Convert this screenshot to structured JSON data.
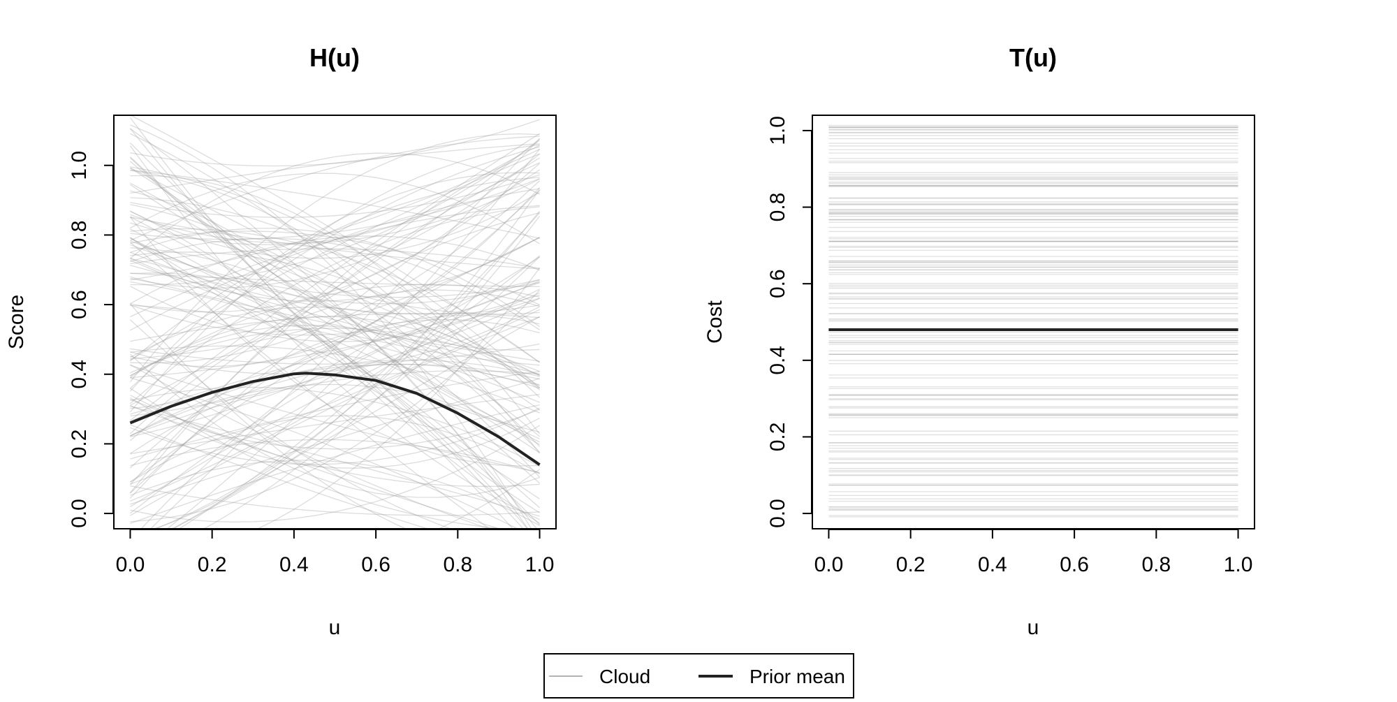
{
  "chart_data": [
    {
      "type": "line",
      "title": "H(u)",
      "xlabel": "u",
      "ylabel": "Score",
      "xlim": [
        -0.04,
        1.04
      ],
      "ylim": [
        -0.044,
        1.144
      ],
      "xticks": [
        "0.0",
        "0.2",
        "0.4",
        "0.6",
        "0.8",
        "1.0"
      ],
      "yticks": [
        "0.0",
        "0.2",
        "0.4",
        "0.6",
        "0.8",
        "1.0"
      ],
      "grid": false,
      "cloud": {
        "name": "Cloud",
        "count": 150,
        "kind": "quadratic curves",
        "color": "#9a9a9a"
      },
      "series": [
        {
          "name": "Prior mean",
          "color": "#222222",
          "x": [
            0,
            0.1,
            0.2,
            0.3,
            0.4,
            0.43,
            0.5,
            0.6,
            0.7,
            0.8,
            0.9,
            1.0
          ],
          "y": [
            0.26,
            0.308,
            0.348,
            0.379,
            0.401,
            0.403,
            0.398,
            0.382,
            0.345,
            0.288,
            0.22,
            0.14
          ]
        }
      ]
    },
    {
      "type": "line",
      "title": "T(u)",
      "xlabel": "u",
      "ylabel": "Cost",
      "xlim": [
        -0.04,
        1.04
      ],
      "ylim": [
        -0.04,
        1.04
      ],
      "xticks": [
        "0.0",
        "0.2",
        "0.4",
        "0.6",
        "0.8",
        "1.0"
      ],
      "yticks": [
        "0.0",
        "0.2",
        "0.4",
        "0.6",
        "0.8",
        "1.0"
      ],
      "grid": false,
      "cloud": {
        "name": "Cloud",
        "count": 150,
        "kind": "horizontal lines",
        "color": "#9a9a9a"
      },
      "series": [
        {
          "name": "Prior mean",
          "color": "#222222",
          "x": [
            0,
            1
          ],
          "y": [
            0.48,
            0.48
          ]
        }
      ]
    }
  ],
  "legend": {
    "position": "bottom-center",
    "items": [
      {
        "label": "Cloud",
        "style": "thin-gray"
      },
      {
        "label": "Prior mean",
        "style": "thick-dark"
      }
    ]
  }
}
